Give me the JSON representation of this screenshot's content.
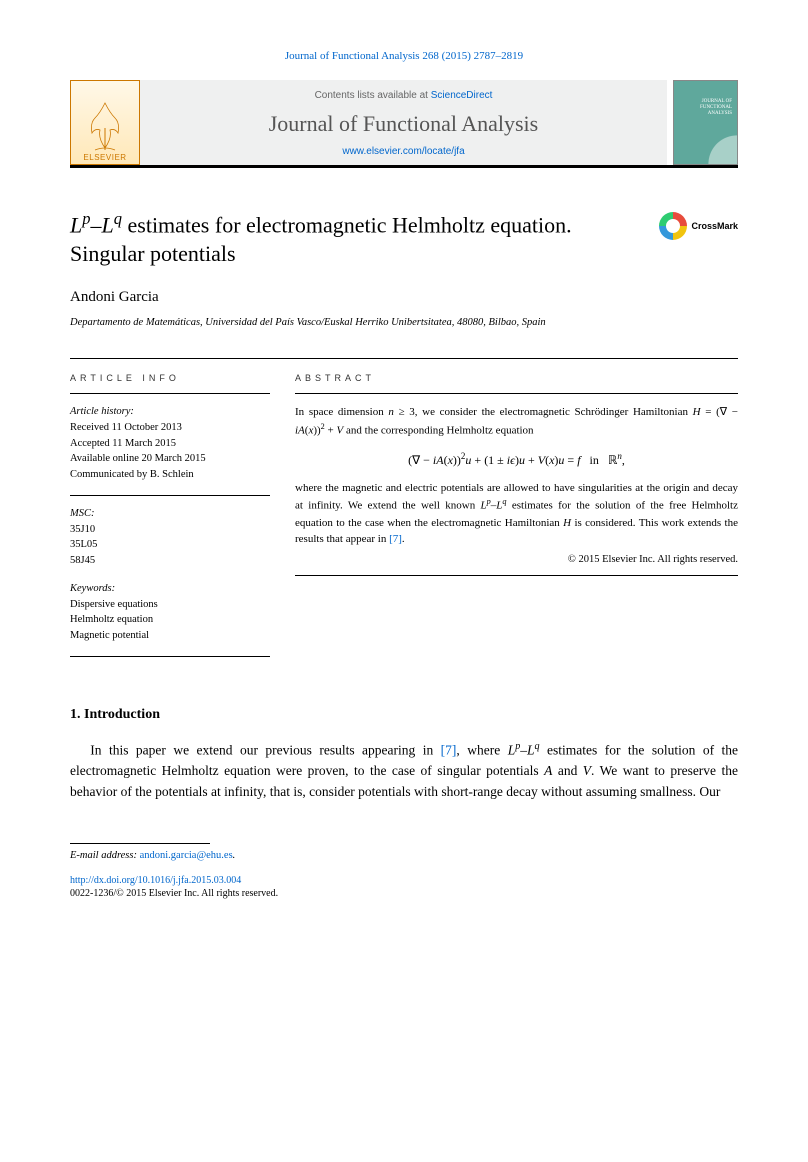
{
  "header": {
    "citation": "Journal of Functional Analysis 268 (2015) 2787–2819",
    "contents_prefix": "Contents lists available at ",
    "contents_link": "ScienceDirect",
    "journal_name": "Journal of Functional Analysis",
    "journal_url": "www.elsevier.com/locate/jfa",
    "elsevier_label": "ELSEVIER",
    "cover_text_line1": "JOURNAL OF",
    "cover_text_line2": "FUNCTIONAL",
    "cover_text_line3": "ANALYSIS"
  },
  "title_html": "<span class='ital'>L</span><sup><span class='ital'>p</span></sup>–<span class='ital'>L</span><sup><span class='ital'>q</span></sup> estimates for electromagnetic Helmholtz equation. Singular potentials",
  "crossmark_label": "CrossMark",
  "author": "Andoni Garcia",
  "affiliation": "Departamento de Matemáticas, Universidad del País Vasco/Euskal Herriko Unibertsitatea, 48080, Bilbao, Spain",
  "article_info": {
    "label": "ARTICLE INFO",
    "history_heading": "Article history:",
    "history": [
      "Received 11 October 2013",
      "Accepted 11 March 2015",
      "Available online 20 March 2015",
      "Communicated by B. Schlein"
    ],
    "msc_heading": "MSC:",
    "msc": [
      "35J10",
      "35L05",
      "58J45"
    ],
    "keywords_heading": "Keywords:",
    "keywords": [
      "Dispersive equations",
      "Helmholtz equation",
      "Magnetic potential"
    ]
  },
  "abstract": {
    "label": "ABSTRACT",
    "para1_html": "In space dimension <span class='ital'>n</span> ≥ 3, we consider the electromagnetic Schrödinger Hamiltonian <span class='ital'>H</span> = (∇ − <span class='ital'>iA</span>(<span class='ital'>x</span>))<sup>2</sup> + <span class='ital'>V</span> and the corresponding Helmholtz equation",
    "equation_html": "(∇ − <span class='ital'>iA</span>(<span class='ital'>x</span>))<sup>2</sup><span class='ital'>u</span> + (1 ± <span class='ital'>iϵ</span>)<span class='ital'>u</span> + <span class='ital'>V</span>(<span class='ital'>x</span>)<span class='ital'>u</span> = <span class='ital'>f</span> &nbsp; in &nbsp; ℝ<sup><span class='ital'>n</span></sup>,",
    "para2_html": "where the magnetic and electric potentials are allowed to have singularities at the origin and decay at infinity. We extend the well known <span class='ital'>L</span><sup><span class='ital'>p</span></sup>–<span class='ital'>L</span><sup><span class='ital'>q</span></sup> estimates for the solution of the free Helmholtz equation to the case when the electromagnetic Hamiltonian <span class='ital'>H</span> is considered. This work extends the results that appear in <span class='ref'>[7]</span>.",
    "copyright": "© 2015 Elsevier Inc. All rights reserved."
  },
  "section1": {
    "heading": "1. Introduction",
    "para_html": "In this paper we extend our previous results appearing in <span class='ref'>[7]</span>, where <span class='ital'>L</span><sup><span class='ital'>p</span></sup>–<span class='ital'>L</span><sup><span class='ital'>q</span></sup> estimates for the solution of the electromagnetic Helmholtz equation were proven, to the case of singular potentials <span class='ital'>A</span> and <span class='ital'>V</span>. We want to preserve the behavior of the potentials at infinity, that is, consider potentials with short-range decay without assuming smallness. Our"
  },
  "footer": {
    "email_label": "E-mail address: ",
    "email": "andoni.garcia@ehu.es",
    "doi": "http://dx.doi.org/10.1016/j.jfa.2015.03.004",
    "copyright_line": "0022-1236/© 2015 Elsevier Inc. All rights reserved."
  },
  "colors": {
    "link": "#0066cc",
    "elsevier_orange": "#cc7700",
    "cover_bg": "#5fa89c",
    "text": "#000000"
  }
}
